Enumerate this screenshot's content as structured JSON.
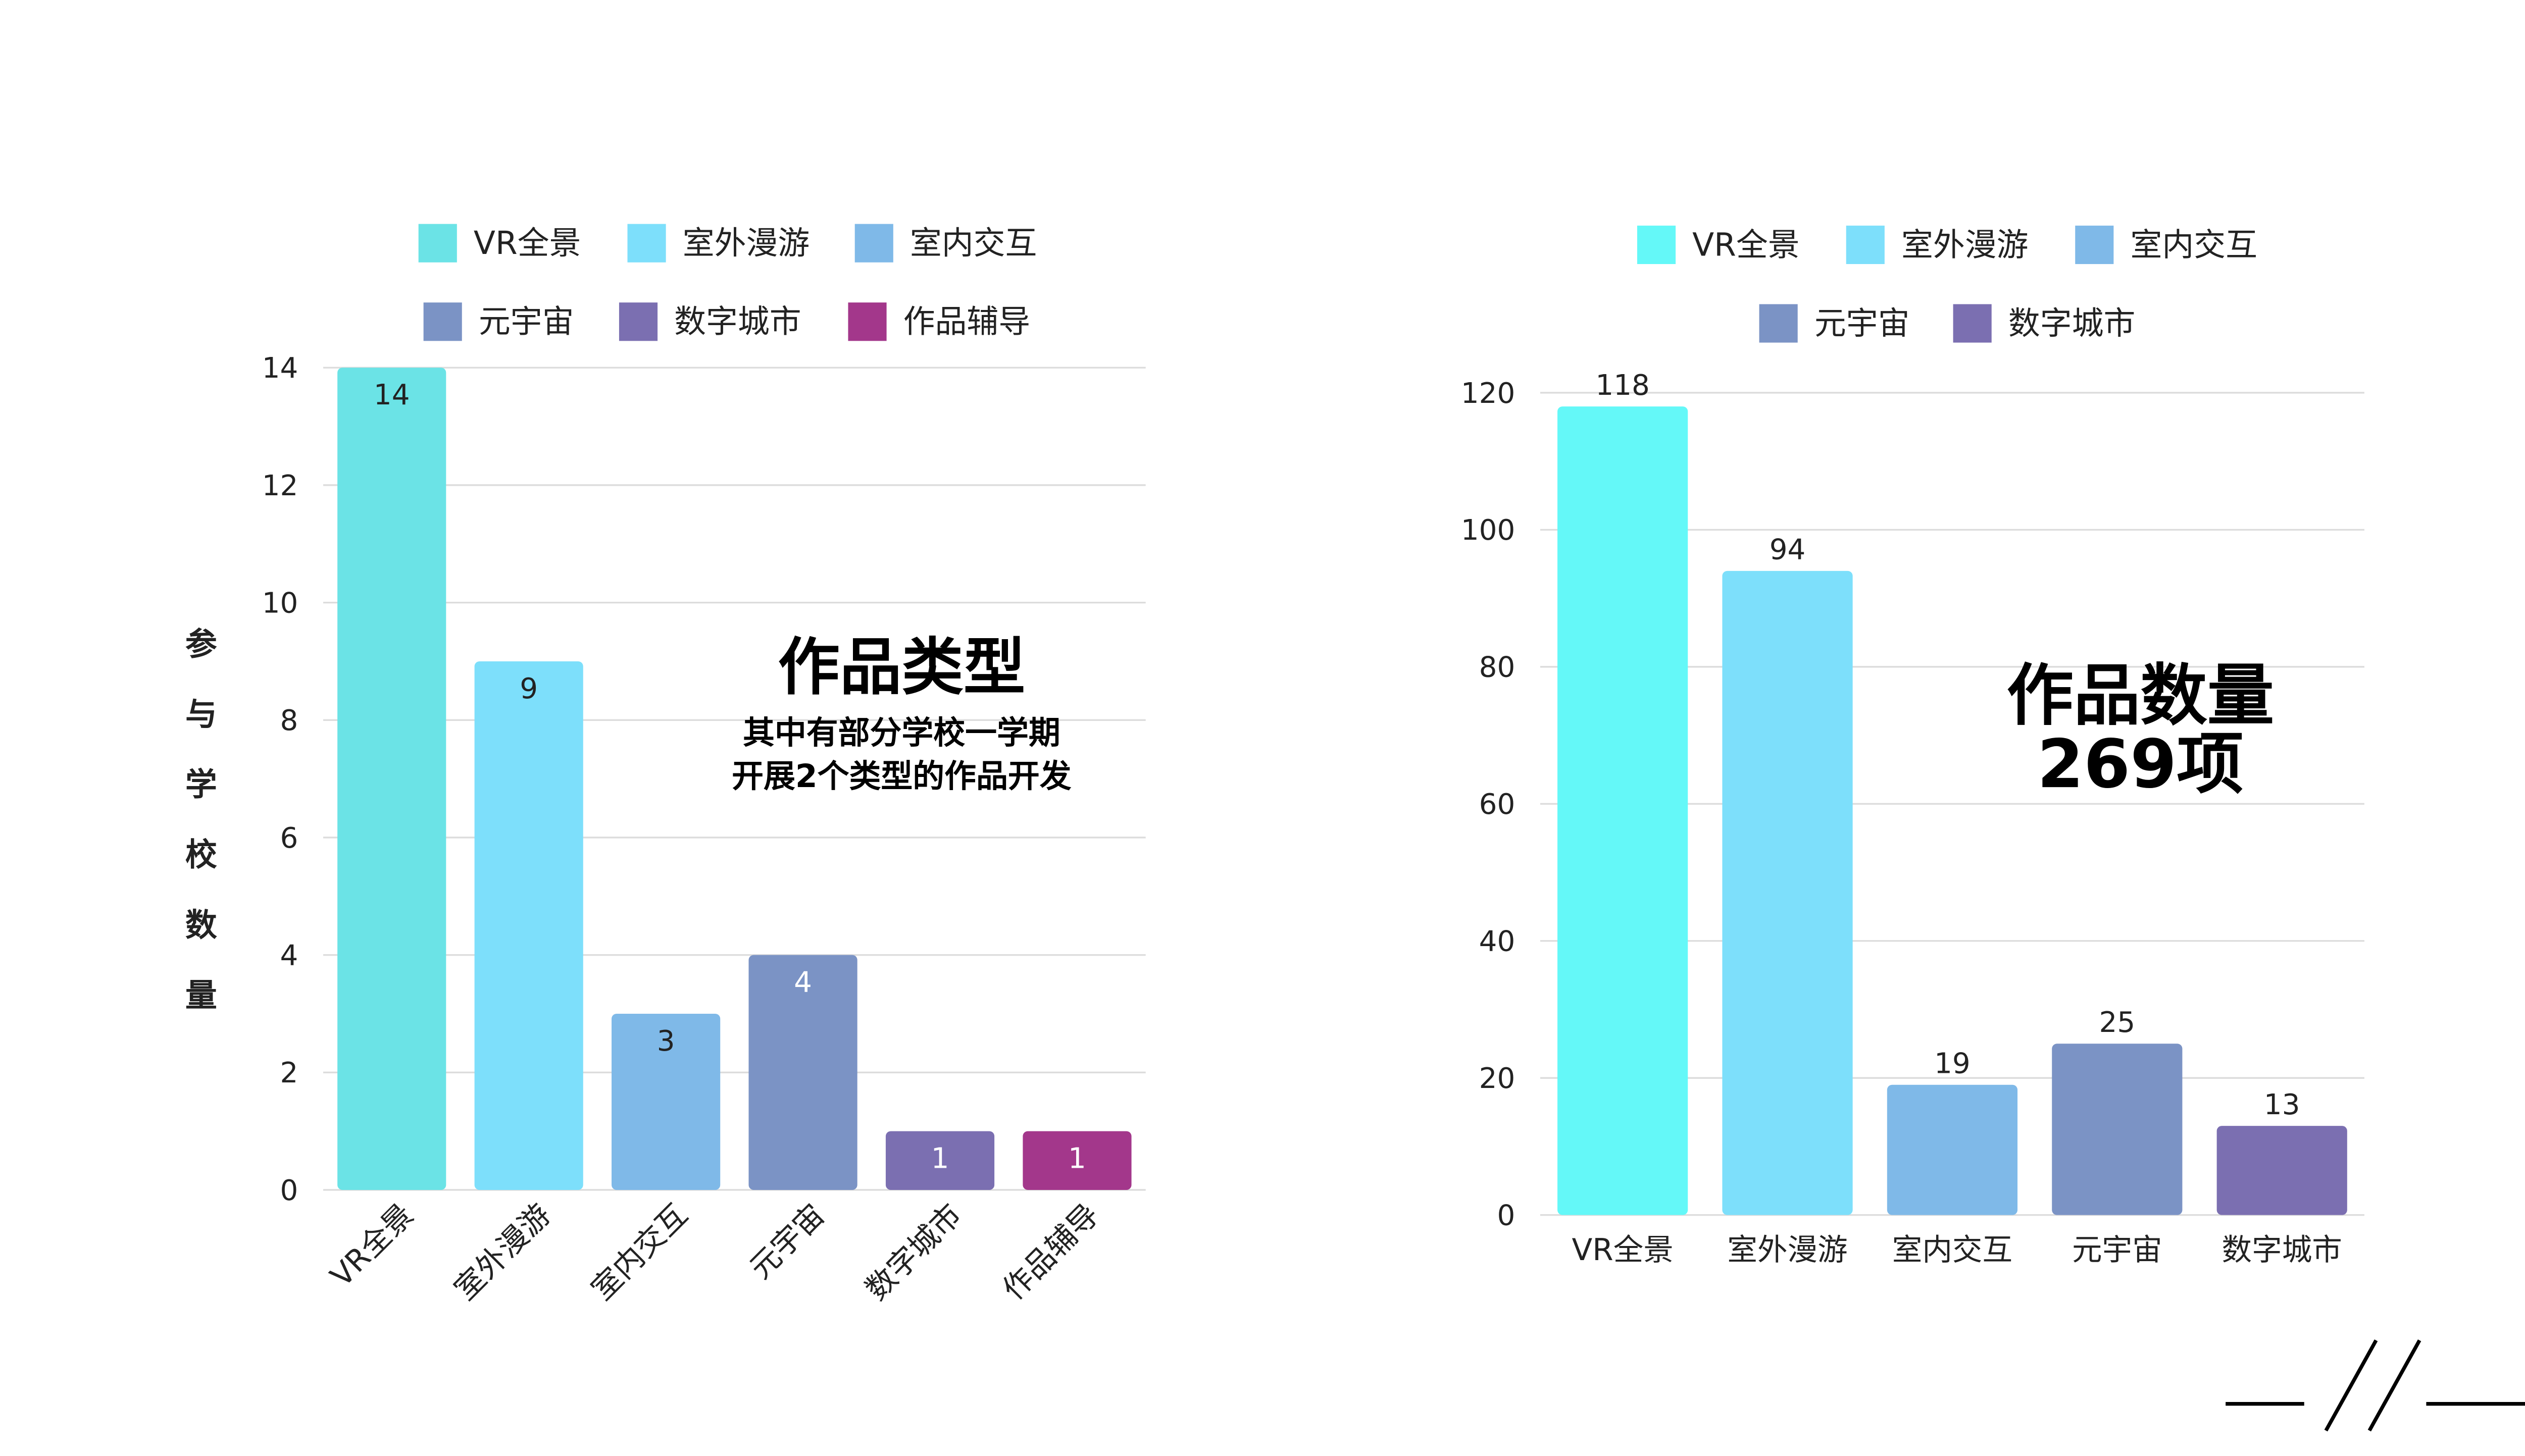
{
  "chart_data": [
    {
      "type": "bar",
      "title": "作品类型",
      "subtitle": [
        "其中有部分学校一学期",
        "开展2个类型的作品开发"
      ],
      "ylabel": "参与学校数量",
      "xlabel": "",
      "ylim": [
        0,
        14
      ],
      "yticks": [
        0,
        2,
        4,
        6,
        8,
        10,
        12,
        14
      ],
      "grid": true,
      "legend_position": "top",
      "categories": [
        "VR全景",
        "室外漫游",
        "室内交互",
        "元宇宙",
        "数字城市",
        "作品辅导"
      ],
      "values": [
        14,
        9,
        3,
        4,
        1,
        1
      ],
      "colors": [
        "#6be3e6",
        "#7ddffb",
        "#7fb9e8",
        "#7b93c5",
        "#7b6fb1",
        "#a3378b"
      ]
    },
    {
      "type": "bar",
      "title": "作品数量",
      "subtitle": [
        "269项"
      ],
      "ylabel": "",
      "xlabel": "",
      "ylim": [
        0,
        120
      ],
      "yticks": [
        0,
        20,
        40,
        60,
        80,
        100,
        120
      ],
      "grid": true,
      "legend_position": "top",
      "categories": [
        "VR全景",
        "室外漫游",
        "室内交互",
        "元宇宙",
        "数字城市"
      ],
      "values": [
        118,
        94,
        19,
        25,
        13
      ],
      "colors": [
        "#64f8f8",
        "#7ddffb",
        "#7fb9e8",
        "#7b93c5",
        "#7b6fb1"
      ]
    }
  ]
}
